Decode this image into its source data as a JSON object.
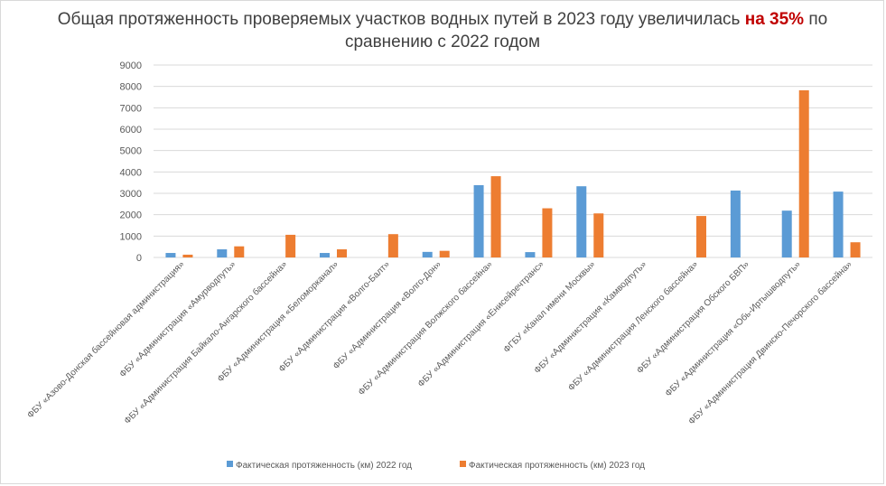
{
  "title": {
    "line1_prefix": "Общая протяженность проверяемых участков водных путей в 2023 году увеличилась ",
    "highlight": "на 35%",
    "line1_suffix": " по",
    "line2": "сравнению с 2022 годом"
  },
  "colors": {
    "series_2022": "#5b9bd5",
    "series_2023": "#ed7d31",
    "highlight": "#c00000",
    "grid": "#d9d9d9",
    "text": "#595959"
  },
  "chart_data": {
    "type": "bar",
    "title": "Общая протяженность проверяемых участков водных путей в 2023 году увеличилась на 35% по сравнению с 2022 годом",
    "categories": [
      "ФБУ «Азово-Донская бассейновая администрация»",
      "ФБУ «Администрация «Амурводпуть»",
      "ФБУ «Администрация Байкало-Ангарского бассейна»",
      "ФБУ «Администрация «Беломорканал»",
      "ФБУ «Администрация «Волго-Балт»",
      "ФБУ «Администрация «Волго-Дон»",
      "ФБУ «Администрация Волжского бассейна»",
      "ФБУ «Администрация «Енисейречтранс»",
      "ФГБУ «Канал имени Москвы»",
      "ФБУ «Администрация «Камводпуть»",
      "ФБУ «Администрация Ленского бассейна»",
      "ФБУ «Администрация Обского БВП»",
      "ФБУ «Администрация «Обь-Иртышводпуть»",
      "ФБУ «Администрация Двинско-Печорского бассейна»"
    ],
    "series": [
      {
        "name": "Фактическая протяженность (км) 2022 год",
        "values": [
          210,
          380,
          0,
          210,
          0,
          260,
          3380,
          250,
          3330,
          0,
          0,
          3130,
          2190,
          3080
        ]
      },
      {
        "name": "Фактическая протяженность (км) 2023 год",
        "values": [
          130,
          520,
          1060,
          380,
          1090,
          310,
          3800,
          2300,
          2060,
          0,
          1940,
          0,
          7820,
          710
        ]
      }
    ],
    "ylim": [
      0,
      9000
    ],
    "yticks": [
      "0",
      "1000",
      "2000",
      "3000",
      "4000",
      "5000",
      "6000",
      "7000",
      "8000",
      "9000"
    ],
    "grid": true,
    "legend_position": "bottom",
    "xlabel": "",
    "ylabel": ""
  }
}
